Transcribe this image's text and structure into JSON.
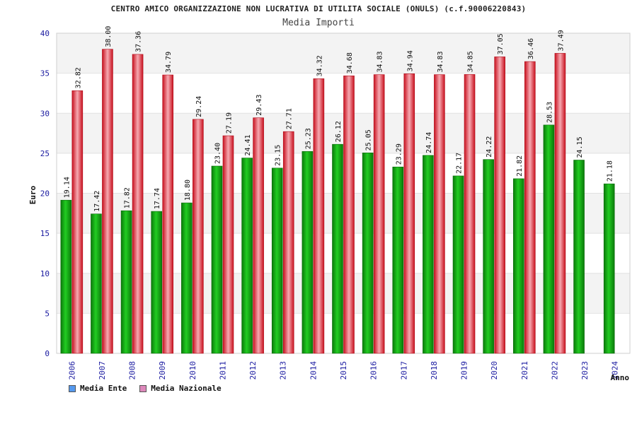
{
  "chart_data": {
    "type": "bar",
    "title": "CENTRO AMICO ORGANIZZAZIONE NON LUCRATIVA DI UTILITA SOCIALE (ONULS) (c.f.90006220843)",
    "subtitle": "Media Importi",
    "xlabel": "Anno",
    "ylabel": "Euro",
    "ylim": [
      0,
      40
    ],
    "yticks": [
      "0",
      "5",
      "10",
      "15",
      "20",
      "25",
      "30",
      "35",
      "40"
    ],
    "categories": [
      "2006",
      "2007",
      "2008",
      "2009",
      "2010",
      "2011",
      "2012",
      "2013",
      "2014",
      "2015",
      "2016",
      "2017",
      "2018",
      "2019",
      "2020",
      "2021",
      "2022",
      "2023",
      "2024"
    ],
    "series": [
      {
        "name": "Media Ente",
        "color": "#11aa11",
        "values": [
          19.14,
          17.42,
          17.82,
          17.74,
          18.8,
          23.4,
          24.41,
          23.15,
          25.23,
          26.12,
          25.05,
          23.29,
          24.74,
          22.17,
          24.22,
          21.82,
          28.53,
          24.15,
          21.18
        ],
        "labels": [
          "19.14",
          "17.42",
          "17.82",
          "17.74",
          "18.80",
          "23.40",
          "24.41",
          "23.15",
          "25.23",
          "26.12",
          "25.05",
          "23.29",
          "24.74",
          "22.17",
          "24.22",
          "21.82",
          "28.53",
          "24.15",
          "21.18"
        ]
      },
      {
        "name": "Media Nazionale",
        "color": "#ee2233",
        "values": [
          32.82,
          38.0,
          37.36,
          34.79,
          29.24,
          27.19,
          29.43,
          27.71,
          34.32,
          34.68,
          34.83,
          34.94,
          34.83,
          34.85,
          37.05,
          36.46,
          37.49,
          null,
          null
        ],
        "labels": [
          "32.82",
          "38.00",
          "37.36",
          "34.79",
          "29.24",
          "27.19",
          "29.43",
          "27.71",
          "34.32",
          "34.68",
          "34.83",
          "34.94",
          "34.83",
          "34.85",
          "37.05",
          "36.46",
          "37.49",
          "",
          ""
        ]
      }
    ],
    "grid": true,
    "legend_position": "bottom-left"
  },
  "legend": {
    "items": [
      {
        "label": "Media Ente",
        "color": "#5599ee"
      },
      {
        "label": "Media Nazionale",
        "color": "#dd88bb"
      }
    ]
  }
}
